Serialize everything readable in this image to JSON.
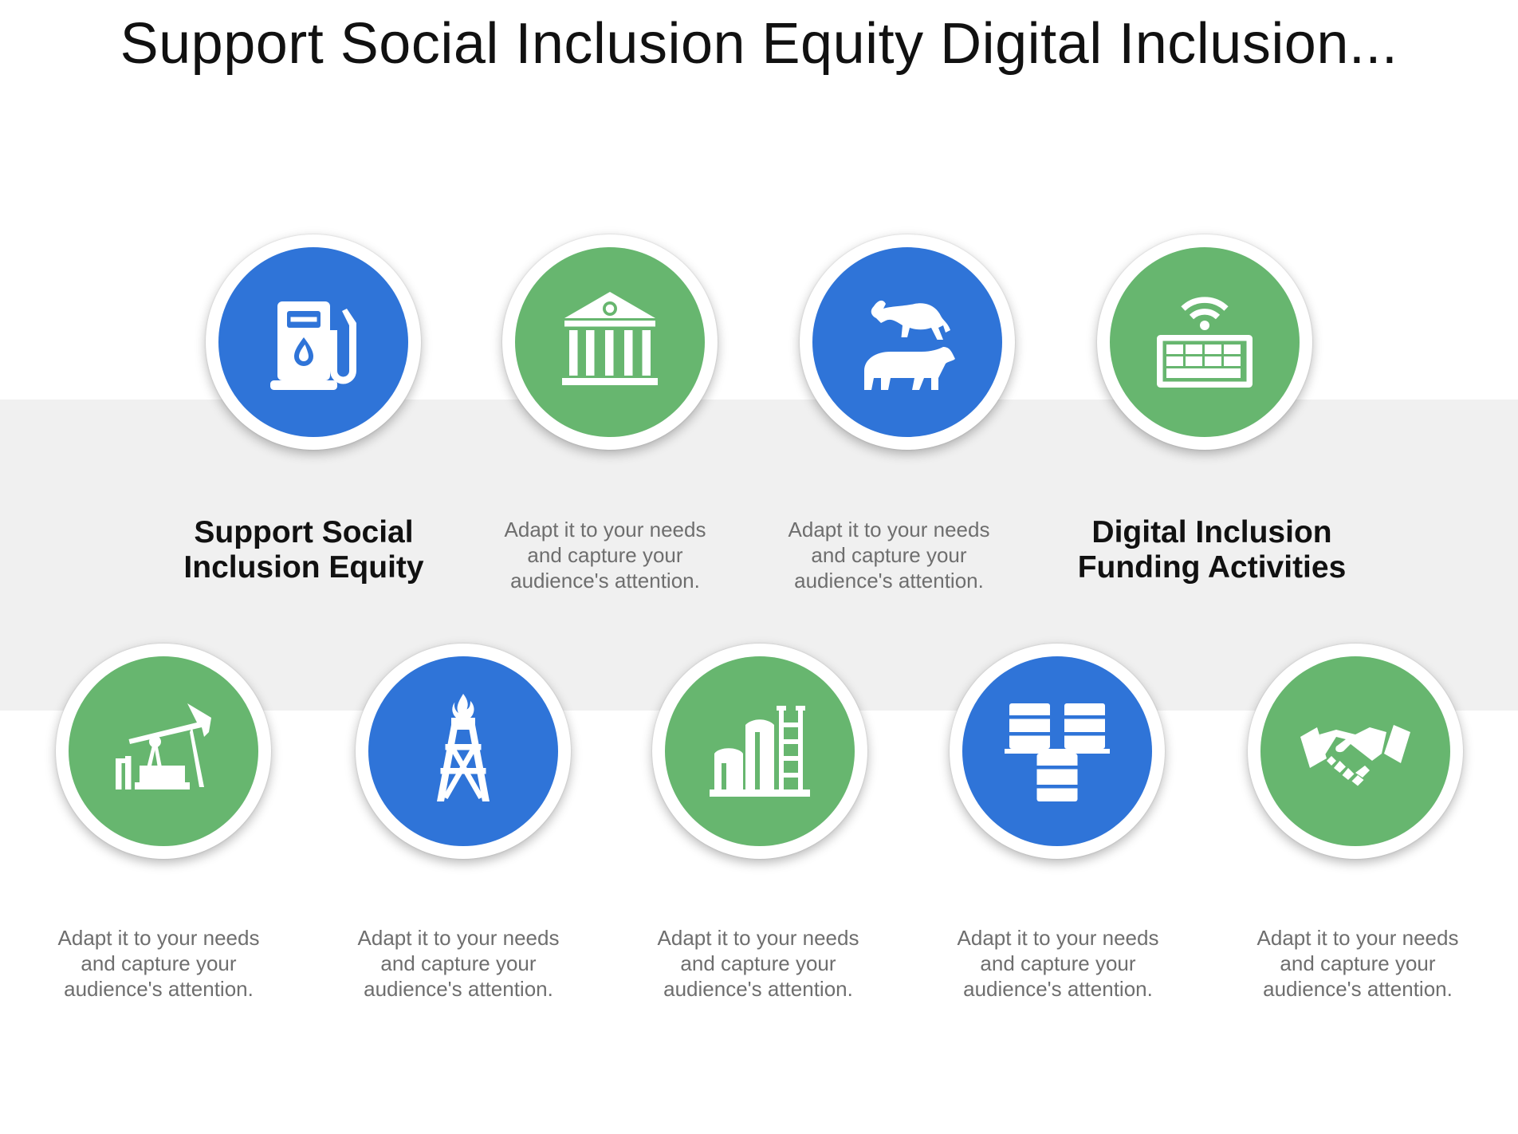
{
  "title": "Support Social Inclusion Equity Digital Inclusion...",
  "colors": {
    "blue": "#2f74d8",
    "green": "#67b66f",
    "band": "#f0f0f0"
  },
  "top_row": [
    {
      "icon": "fuel-pump-icon",
      "color": "blue"
    },
    {
      "icon": "bank-building-icon",
      "color": "green"
    },
    {
      "icon": "bull-and-bear-icon",
      "color": "blue"
    },
    {
      "icon": "wifi-keyboard-icon",
      "color": "green"
    }
  ],
  "middle_texts": [
    {
      "kind": "heading",
      "line1": "Support Social",
      "line2": "Inclusion Equity"
    },
    {
      "kind": "body",
      "line1": "Adapt it to your needs",
      "line2": "and capture your",
      "line3": "audience's attention."
    },
    {
      "kind": "body",
      "line1": "Adapt it to your needs",
      "line2": "and capture your",
      "line3": "audience's attention."
    },
    {
      "kind": "heading",
      "line1": "Digital Inclusion",
      "line2": "Funding Activities"
    }
  ],
  "bottom_row": [
    {
      "icon": "oil-pumpjack-icon",
      "color": "green",
      "line1": "Adapt it to your needs",
      "line2": "and capture your",
      "line3": "audience's attention."
    },
    {
      "icon": "oil-derrick-icon",
      "color": "blue",
      "line1": "Adapt it to your needs",
      "line2": "and capture your",
      "line3": "audience's attention."
    },
    {
      "icon": "refinery-tanks-icon",
      "color": "green",
      "line1": "Adapt it to your needs",
      "line2": "and capture your",
      "line3": "audience's attention."
    },
    {
      "icon": "oil-barrels-icon",
      "color": "blue",
      "line1": "Adapt it to your needs",
      "line2": "and capture your",
      "line3": "audience's attention."
    },
    {
      "icon": "handshake-icon",
      "color": "green",
      "line1": "Adapt it to your needs",
      "line2": "and capture your",
      "line3": "audience's attention."
    }
  ]
}
